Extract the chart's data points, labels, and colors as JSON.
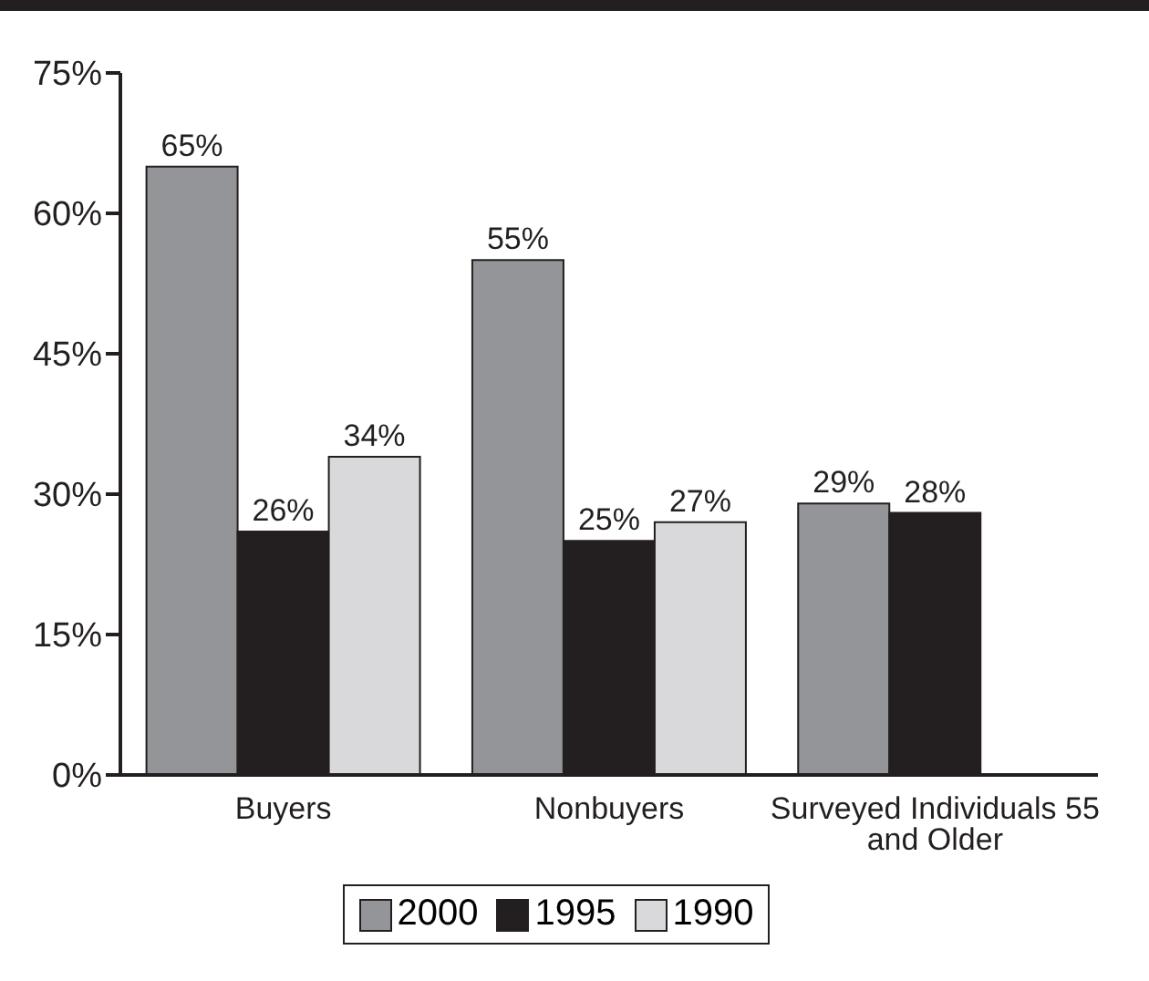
{
  "chart_data": {
    "type": "bar",
    "categories": [
      "Buyers",
      "Nonbuyers",
      "Surveyed Individuals 55 and Older"
    ],
    "series": [
      {
        "name": "2000",
        "color": "#939598",
        "values": [
          65,
          55,
          29
        ],
        "value_labels": [
          "65%",
          "55%",
          "29%"
        ]
      },
      {
        "name": "1995",
        "color": "#231f20",
        "values": [
          26,
          25,
          28
        ],
        "value_labels": [
          "26%",
          "25%",
          "28%"
        ]
      },
      {
        "name": "1990",
        "color": "#d9d9db",
        "values": [
          34,
          27,
          null
        ],
        "value_labels": [
          "34%",
          "27%",
          null
        ]
      }
    ],
    "ylim": [
      0,
      75
    ],
    "yticks": [
      {
        "value": 0,
        "label": "0%"
      },
      {
        "value": 15,
        "label": "15%"
      },
      {
        "value": 30,
        "label": "30%"
      },
      {
        "value": 45,
        "label": "45%"
      },
      {
        "value": 60,
        "label": "60%"
      },
      {
        "value": 75,
        "label": "75%"
      }
    ],
    "grid": false,
    "legend": "bottom"
  }
}
